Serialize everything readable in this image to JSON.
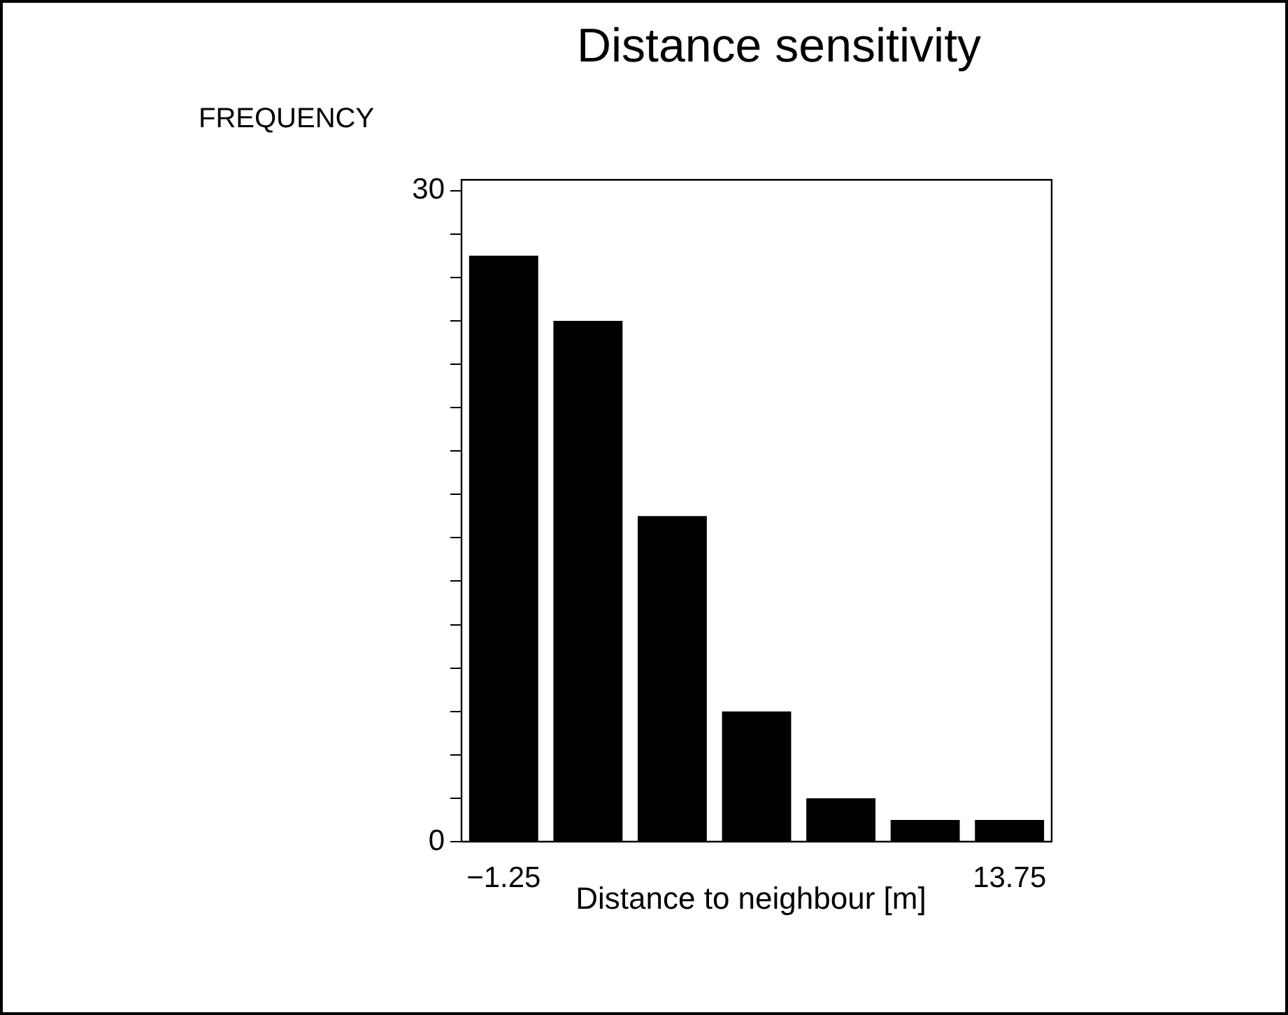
{
  "chart_data": {
    "type": "histogram",
    "title": "Distance sensitivity",
    "xlabel": "Distance to neighbour [m]",
    "ylabel": "FREQUENCY",
    "bins": [
      -2.5,
      0,
      2.5,
      5,
      7.5,
      10,
      12.5,
      15
    ],
    "values": [
      27,
      24,
      15,
      6,
      2,
      1,
      1
    ],
    "color": "#000000",
    "xlim": [
      -2.5,
      15
    ],
    "xticks": [
      -1.25,
      13.75
    ],
    "ylim": [
      0,
      30.5
    ],
    "yticks": [
      0,
      {
        "value": 2,
        "label": null
      },
      {
        "value": 4,
        "label": null
      },
      {
        "value": 6,
        "label": null
      },
      {
        "value": 8,
        "label": null
      },
      {
        "value": 10,
        "label": null
      },
      {
        "value": 12,
        "label": null
      },
      {
        "value": 14,
        "label": null
      },
      {
        "value": 16,
        "label": null
      },
      {
        "value": 18,
        "label": null
      },
      {
        "value": 20,
        "label": null
      },
      {
        "value": 22,
        "label": null
      },
      {
        "value": 24,
        "label": null
      },
      {
        "value": 26,
        "label": null
      },
      {
        "value": 28,
        "label": null
      },
      30
    ],
    "grid": false
  }
}
